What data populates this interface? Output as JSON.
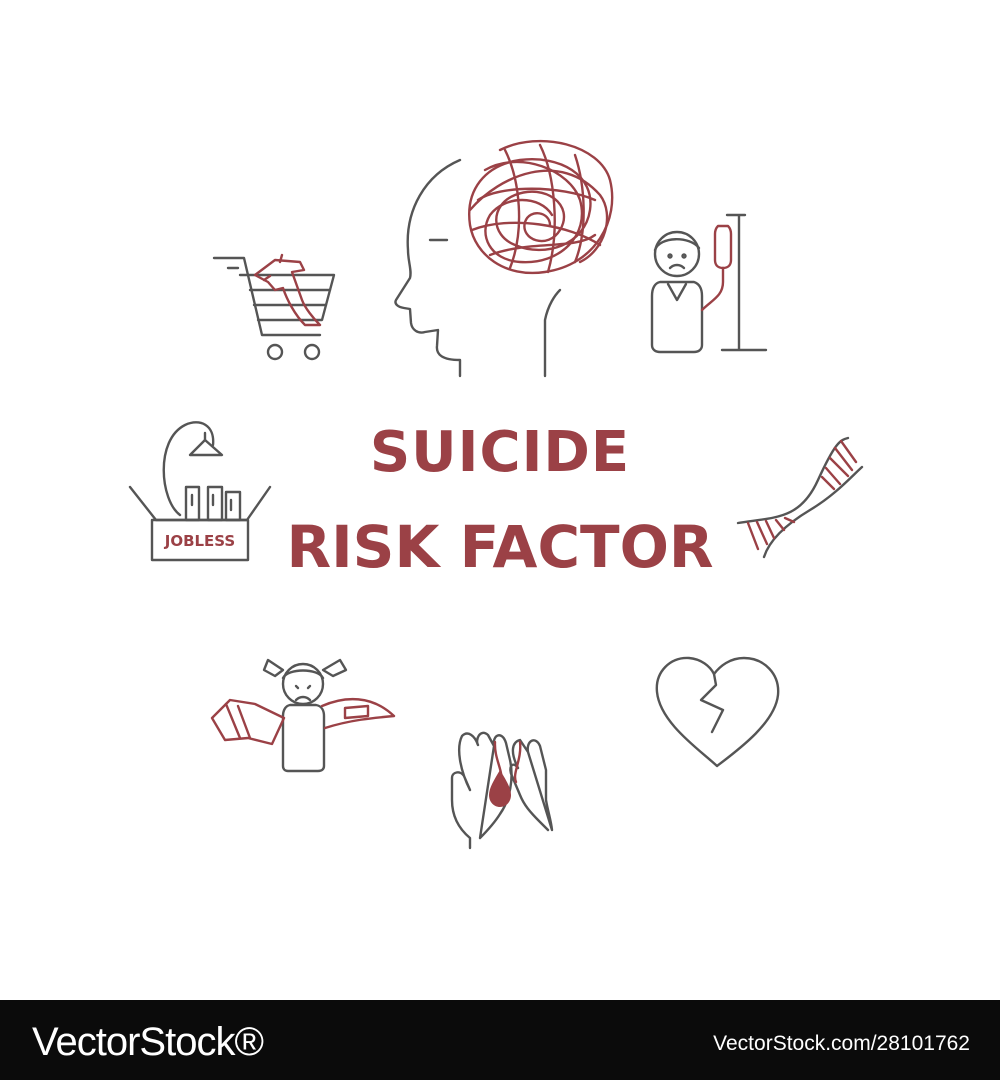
{
  "title": {
    "line1": "SUICIDE",
    "line2": "RISK FACTOR",
    "color": "#9b4146"
  },
  "icons": [
    {
      "name": "brain-tangle-head-icon"
    },
    {
      "name": "shopping-cart-gun-icon"
    },
    {
      "name": "sick-person-iv-drip-icon"
    },
    {
      "name": "jobless-box-icon",
      "label": "JOBLESS"
    },
    {
      "name": "dna-helix-icon"
    },
    {
      "name": "child-belt-abuse-icon"
    },
    {
      "name": "broken-heart-icon"
    },
    {
      "name": "hands-blood-drop-icon"
    }
  ],
  "footer": {
    "brand": "VectorStock®",
    "ref": "VectorStock.com/28101762"
  }
}
